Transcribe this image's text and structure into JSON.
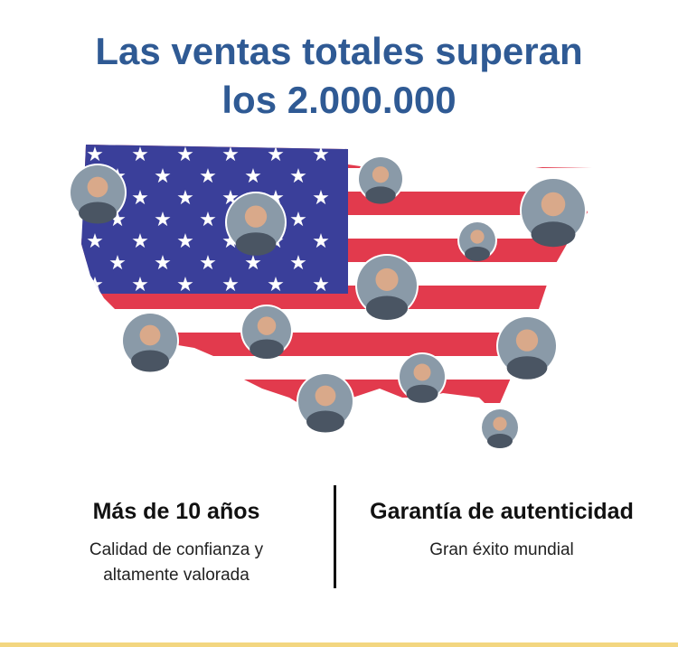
{
  "headline": {
    "line1": "Las ventas totales superan",
    "line2": "los 2.000.000"
  },
  "colors": {
    "title": "#2f5a94",
    "flag_red": "#e23a4d",
    "flag_blue": "#3a3f9a",
    "accent_bottom": "#f3d680"
  },
  "features": [
    {
      "title": "Más de 10 años",
      "line1": "Calidad de confianza y",
      "line2": "altamente valorada"
    },
    {
      "title": "Garantía de autenticidad",
      "line1": "Gran éxito mundial"
    }
  ]
}
